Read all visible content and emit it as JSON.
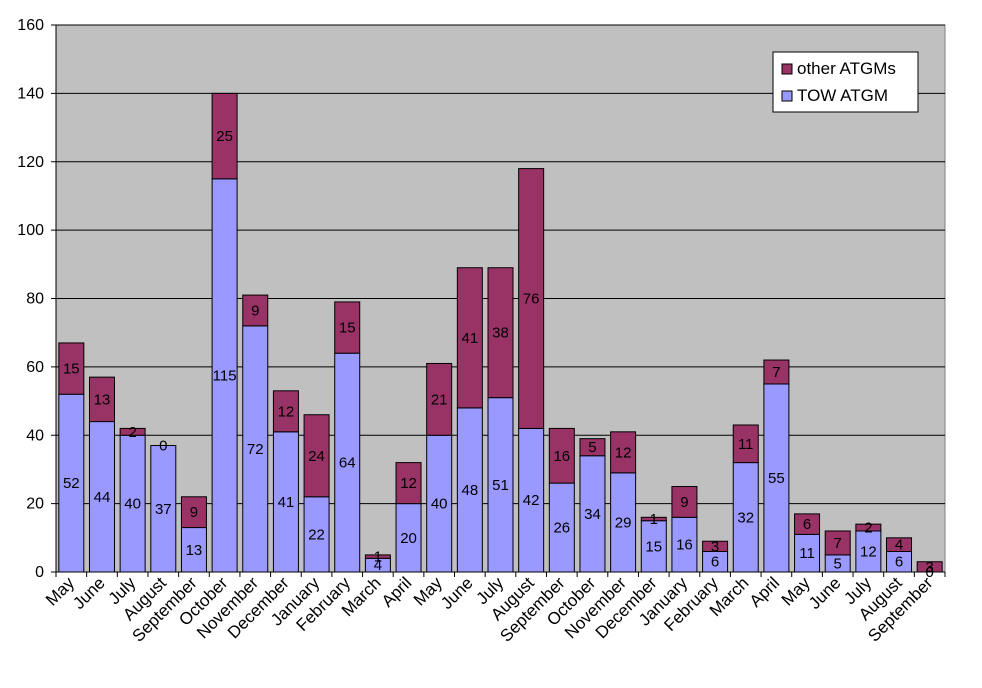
{
  "chart_data": {
    "type": "bar",
    "stacked": true,
    "title": "",
    "xlabel": "",
    "ylabel": "",
    "ylim": [
      0,
      160
    ],
    "yticks": [
      0,
      20,
      40,
      60,
      80,
      100,
      120,
      140,
      160
    ],
    "grid": true,
    "legend_position": "top-right",
    "categories": [
      "May",
      "June",
      "July",
      "August",
      "September",
      "October",
      "November",
      "December",
      "January",
      "February",
      "March",
      "April",
      "May",
      "June",
      "July",
      "August",
      "September",
      "October",
      "November",
      "December",
      "January",
      "February",
      "March",
      "April",
      "May",
      "June",
      "July",
      "August",
      "September"
    ],
    "series": [
      {
        "name": "TOW ATGM",
        "color": "#9999ff",
        "values": [
          52,
          44,
          40,
          37,
          13,
          115,
          72,
          41,
          22,
          64,
          4,
          20,
          40,
          48,
          51,
          42,
          26,
          34,
          29,
          15,
          16,
          6,
          32,
          55,
          11,
          5,
          12,
          6,
          0
        ]
      },
      {
        "name": "other ATGMs",
        "color": "#993366",
        "values": [
          15,
          13,
          2,
          0,
          9,
          25,
          9,
          12,
          24,
          15,
          1,
          12,
          21,
          41,
          38,
          76,
          16,
          5,
          12,
          1,
          9,
          3,
          11,
          7,
          6,
          7,
          2,
          4,
          3
        ]
      }
    ],
    "legend": [
      "other ATGMs",
      "TOW ATGM"
    ],
    "colors": {
      "plot_background": "#c0c0c0",
      "gridline": "#000000",
      "bar_outline": "#000000"
    }
  }
}
